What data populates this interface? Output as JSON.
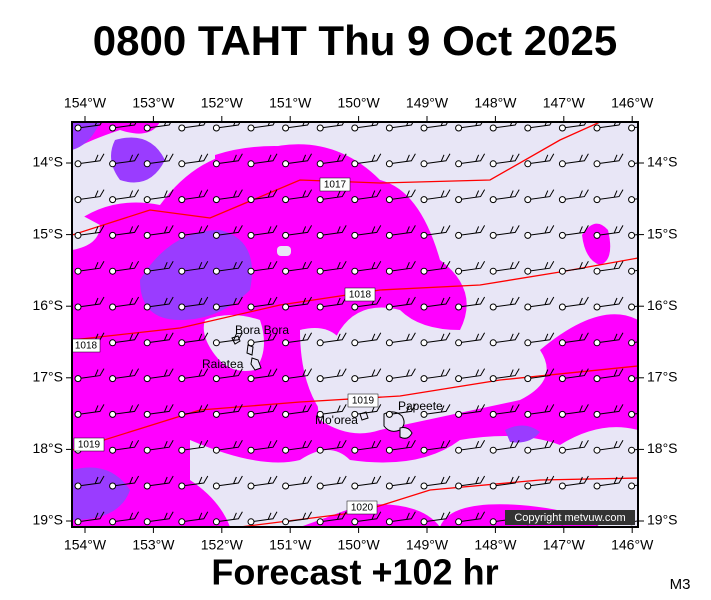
{
  "header": {
    "title": "0800 TAHT Thu 9 Oct 2025"
  },
  "axes": {
    "longitudes": [
      "154°W",
      "153°W",
      "152°W",
      "151°W",
      "150°W",
      "149°W",
      "148°W",
      "147°W",
      "146°W"
    ],
    "latitudes": [
      "14°S",
      "15°S",
      "16°S",
      "17°S",
      "18°S",
      "19°S"
    ]
  },
  "places": [
    "Bora Bora",
    "Raiatea",
    "Mo'orea",
    "Papeete"
  ],
  "isobars": [
    "1017",
    "1018",
    "1018",
    "1019",
    "1019",
    "1020"
  ],
  "copyright": "Copyright metvuw.com",
  "footer": "Forecast +102 hr",
  "model": "M3"
}
